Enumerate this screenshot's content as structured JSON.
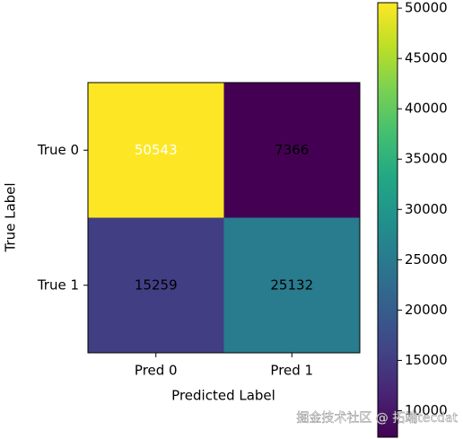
{
  "chart_data": {
    "type": "heatmap",
    "x_label": "Predicted Label",
    "y_label": "True Label",
    "x_categories": [
      "Pred 0",
      "Pred 1"
    ],
    "y_categories": [
      "True 0",
      "True 1"
    ],
    "values": [
      [
        50543,
        7366
      ],
      [
        15259,
        25132
      ]
    ],
    "annotation_colors": [
      [
        "white",
        "black"
      ],
      [
        "black",
        "black"
      ]
    ],
    "colormap": "viridis",
    "colorbar_lim": [
      7366,
      50543
    ],
    "colorbar_ticks": [
      10000,
      15000,
      20000,
      25000,
      30000,
      35000,
      40000,
      45000,
      50000
    ]
  },
  "watermark": "掘金技术社区 @ 拓端tecdat"
}
